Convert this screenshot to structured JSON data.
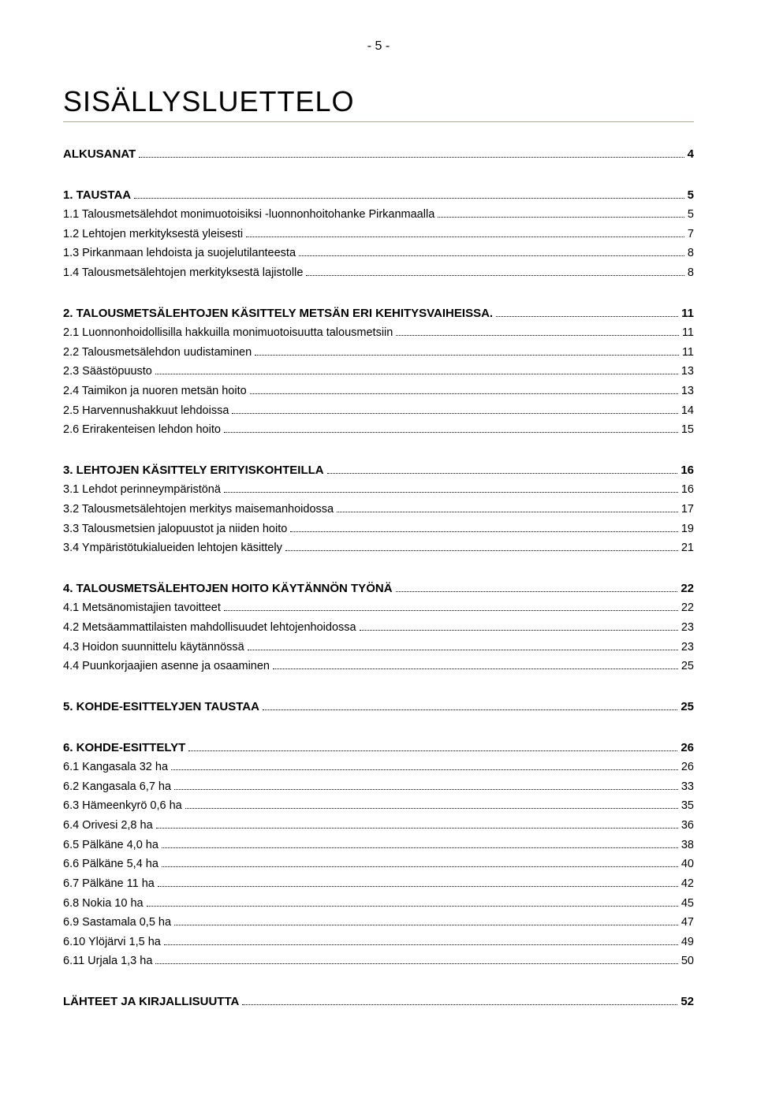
{
  "page_number_label": "- 5 -",
  "main_title": "SISÄLLYSLUETTELO",
  "colors": {
    "rule": "#b8a98c",
    "text": "#000000",
    "background": "#ffffff"
  },
  "typography": {
    "main_title_fontsize": 36,
    "heading_fontsize": 17,
    "line_fontsize": 14.5,
    "font_family": "Arial"
  },
  "sections": [
    {
      "entries": [
        {
          "label": "ALKUSANAT",
          "page": "4",
          "bold": true
        }
      ]
    },
    {
      "entries": [
        {
          "label": "1. TAUSTAA",
          "page": "5",
          "bold": true
        },
        {
          "label": "1.1 Talousmetsälehdot monimuotoisiksi -luonnonhoitohanke Pirkanmaalla",
          "page": "5",
          "bold": false
        },
        {
          "label": "1.2 Lehtojen merkityksestä yleisesti",
          "page": "7",
          "bold": false
        },
        {
          "label": "1.3 Pirkanmaan lehdoista ja suojelutilanteesta",
          "page": "8",
          "bold": false
        },
        {
          "label": "1.4 Talousmetsälehtojen merkityksestä lajistolle",
          "page": "8",
          "bold": false
        }
      ]
    },
    {
      "entries": [
        {
          "label": "2. TALOUSMETSÄLEHTOJEN KÄSITTELY METSÄN ERI KEHITYSVAIHEISSA.",
          "page": "11",
          "bold": true
        },
        {
          "label": "2.1 Luonnonhoidollisilla hakkuilla monimuotoisuutta talousmetsiin",
          "page": "11",
          "bold": false
        },
        {
          "label": "2.2 Talousmetsälehdon uudistaminen",
          "page": "11",
          "bold": false
        },
        {
          "label": "2.3 Säästöpuusto",
          "page": "13",
          "bold": false
        },
        {
          "label": "2.4 Taimikon ja nuoren metsän hoito",
          "page": "13",
          "bold": false
        },
        {
          "label": "2.5 Harvennushakkuut lehdoissa",
          "page": "14",
          "bold": false
        },
        {
          "label": "2.6 Erirakenteisen lehdon hoito",
          "page": "15",
          "bold": false
        }
      ]
    },
    {
      "entries": [
        {
          "label": "3. LEHTOJEN KÄSITTELY ERITYISKOHTEILLA",
          "page": "16",
          "bold": true
        },
        {
          "label": "3.1 Lehdot perinneympäristönä",
          "page": "16",
          "bold": false
        },
        {
          "label": "3.2 Talousmetsälehtojen merkitys maisemanhoidossa",
          "page": "17",
          "bold": false
        },
        {
          "label": "3.3 Talousmetsien jalopuustot ja niiden hoito",
          "page": "19",
          "bold": false
        },
        {
          "label": "3.4 Ympäristötukialueiden lehtojen käsittely",
          "page": "21",
          "bold": false
        }
      ]
    },
    {
      "entries": [
        {
          "label": "4. TALOUSMETSÄLEHTOJEN HOITO KÄYTÄNNÖN TYÖNÄ",
          "page": "22",
          "bold": true
        },
        {
          "label": "4.1 Metsänomistajien tavoitteet",
          "page": "22",
          "bold": false
        },
        {
          "label": "4.2 Metsäammattilaisten mahdollisuudet lehtojenhoidossa",
          "page": "23",
          "bold": false
        },
        {
          "label": "4.3 Hoidon suunnittelu käytännössä",
          "page": "23",
          "bold": false
        },
        {
          "label": "4.4 Puunkorjaajien asenne ja osaaminen",
          "page": "25",
          "bold": false
        }
      ]
    },
    {
      "entries": [
        {
          "label": "5. KOHDE-ESITTELYJEN TAUSTAA",
          "page": "25",
          "bold": true
        }
      ]
    },
    {
      "entries": [
        {
          "label": "6. KOHDE-ESITTELYT",
          "page": "26",
          "bold": true
        },
        {
          "label": "6.1 Kangasala 32 ha",
          "page": "26",
          "bold": false
        },
        {
          "label": "6.2 Kangasala 6,7 ha",
          "page": "33",
          "bold": false
        },
        {
          "label": "6.3 Hämeenkyrö 0,6 ha",
          "page": "35",
          "bold": false
        },
        {
          "label": "6.4 Orivesi 2,8 ha",
          "page": "36",
          "bold": false
        },
        {
          "label": "6.5 Pälkäne 4,0 ha",
          "page": "38",
          "bold": false
        },
        {
          "label": "6.6 Pälkäne 5,4 ha",
          "page": "40",
          "bold": false
        },
        {
          "label": "6.7 Pälkäne 11 ha",
          "page": "42",
          "bold": false
        },
        {
          "label": "6.8 Nokia 10 ha",
          "page": "45",
          "bold": false
        },
        {
          "label": "6.9 Sastamala 0,5 ha",
          "page": "47",
          "bold": false
        },
        {
          "label": "6.10 Ylöjärvi 1,5 ha",
          "page": "49",
          "bold": false
        },
        {
          "label": "6.11 Urjala 1,3 ha",
          "page": "50",
          "bold": false
        }
      ]
    },
    {
      "entries": [
        {
          "label": "LÄHTEET JA KIRJALLISUUTTA",
          "page": "52",
          "bold": true
        }
      ]
    }
  ]
}
